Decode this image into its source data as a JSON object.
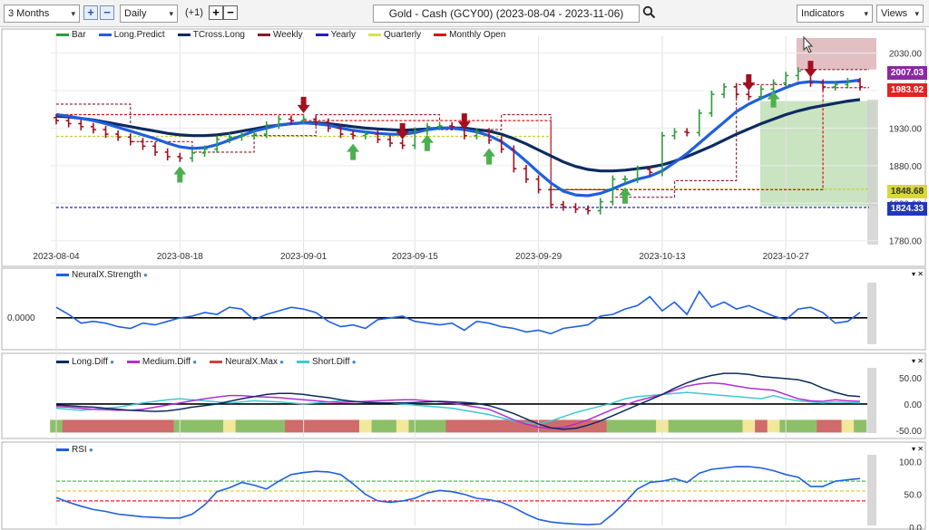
{
  "toolbar": {
    "period": "3 Months",
    "interval": "Daily",
    "offset": "(+1)",
    "title": "Gold - Cash (GCY00) (2023-08-04 - 2023-11-06)",
    "indicators_label": "Indicators",
    "views_label": "Views",
    "plus_glyph": "+",
    "minus_glyph": "−",
    "dropdown_glyph": "▾",
    "search_icon": "search-icon"
  },
  "legends": {
    "price": [
      {
        "label": "Bar",
        "color": "#2e9c3a"
      },
      {
        "label": "Long.Predict",
        "color": "#1f5fe0"
      },
      {
        "label": "TCross.Long",
        "color": "#0d2b5e"
      },
      {
        "label": "Weekly",
        "color": "#8b1a2b"
      },
      {
        "label": "Yearly",
        "color": "#2020c0"
      },
      {
        "label": "Quarterly",
        "color": "#d9e24a"
      },
      {
        "label": "Monthly Open",
        "color": "#e01010"
      }
    ],
    "neuralx": [
      {
        "label": "NeuralX.Strength",
        "color": "#1f5fe0"
      }
    ],
    "diff": [
      {
        "label": "Long.Diff",
        "color": "#0d2b5e"
      },
      {
        "label": "Medium.Diff",
        "color": "#b030d0"
      },
      {
        "label": "NeuralX.Max",
        "color": "#d04040"
      },
      {
        "label": "Short.Diff",
        "color": "#40c8d0"
      }
    ],
    "rsi": [
      {
        "label": "RSI",
        "color": "#1f5fe0"
      }
    ]
  },
  "price_axis": {
    "ticks": [
      "2030.00",
      "1980.00",
      "1930.00",
      "1880.00",
      "1830.00",
      "1780.00"
    ]
  },
  "price_tags": [
    {
      "value": "2007.03",
      "color": "#8a2aa0"
    },
    {
      "value": "1983.92",
      "color": "#e02424"
    },
    {
      "value": "1848.68",
      "color": "#d8d83a"
    },
    {
      "value": "1824.33",
      "color": "#2238b8"
    }
  ],
  "date_axis": {
    "ticks": [
      "2023-08-04",
      "2023-08-18",
      "2023-09-01",
      "2023-09-15",
      "2023-09-29",
      "2023-10-13",
      "2023-10-27"
    ]
  },
  "neuralx_axis": {
    "zero": "0.0000"
  },
  "diff_axis": {
    "ticks": [
      "50.00",
      "0.00",
      "-50.00"
    ]
  },
  "rsi_axis": {
    "ticks": [
      "100.0",
      "50.0",
      "0.0"
    ]
  },
  "close_glyph": "▾ ✕",
  "colors": {
    "bull": "#2e9c3a",
    "bear": "#a01020",
    "panel_border": "#b0b0b0"
  },
  "chart_data": [
    {
      "type": "line",
      "title": "",
      "x": [
        "2023-08-04",
        "2023-08-07",
        "2023-08-08",
        "2023-08-09",
        "2023-08-10",
        "2023-08-11",
        "2023-08-14",
        "2023-08-15",
        "2023-08-16",
        "2023-08-17",
        "2023-08-18",
        "2023-08-21",
        "2023-08-22",
        "2023-08-23",
        "2023-08-24",
        "2023-08-25",
        "2023-08-28",
        "2023-08-29",
        "2023-08-30",
        "2023-08-31",
        "2023-09-01",
        "2023-09-05",
        "2023-09-06",
        "2023-09-07",
        "2023-09-08",
        "2023-09-11",
        "2023-09-12",
        "2023-09-13",
        "2023-09-14",
        "2023-09-15",
        "2023-09-18",
        "2023-09-19",
        "2023-09-20",
        "2023-09-21",
        "2023-09-22",
        "2023-09-25",
        "2023-09-26",
        "2023-09-27",
        "2023-09-28",
        "2023-09-29",
        "2023-10-02",
        "2023-10-03",
        "2023-10-04",
        "2023-10-05",
        "2023-10-06",
        "2023-10-09",
        "2023-10-10",
        "2023-10-11",
        "2023-10-12",
        "2023-10-13",
        "2023-10-16",
        "2023-10-17",
        "2023-10-18",
        "2023-10-19",
        "2023-10-20",
        "2023-10-23",
        "2023-10-24",
        "2023-10-25",
        "2023-10-26",
        "2023-10-27",
        "2023-10-30",
        "2023-10-31",
        "2023-11-01",
        "2023-11-02",
        "2023-11-03",
        "2023-11-06"
      ],
      "series": [
        {
          "name": "Bar",
          "values": [
            1940,
            1936,
            1932,
            1928,
            1922,
            1918,
            1912,
            1906,
            1898,
            1892,
            1890,
            1897,
            1902,
            1915,
            1918,
            1920,
            1922,
            1934,
            1942,
            1940,
            1942,
            1938,
            1930,
            1922,
            1920,
            1922,
            1915,
            1910,
            1907,
            1926,
            1932,
            1933,
            1932,
            1920,
            1925,
            1914,
            1902,
            1876,
            1862,
            1848,
            1828,
            1825,
            1822,
            1820,
            1832,
            1862,
            1862,
            1875,
            1871,
            1920,
            1925,
            1924,
            1950,
            1975,
            1985,
            1975,
            1972,
            1982,
            1990,
            2000,
            2006,
            1990,
            1985,
            1988,
            1992,
            1985
          ]
        },
        {
          "name": "Long.Predict",
          "values": [
            1948,
            1946,
            1943,
            1940,
            1936,
            1931,
            1926,
            1921,
            1916,
            1910,
            1905,
            1903,
            1904,
            1908,
            1914,
            1920,
            1926,
            1930,
            1934,
            1936,
            1937,
            1936,
            1934,
            1930,
            1927,
            1925,
            1923,
            1922,
            1922,
            1924,
            1928,
            1930,
            1930,
            1928,
            1925,
            1920,
            1912,
            1900,
            1886,
            1871,
            1857,
            1846,
            1841,
            1840,
            1843,
            1849,
            1856,
            1862,
            1866,
            1873,
            1884,
            1896,
            1910,
            1924,
            1938,
            1952,
            1962,
            1970,
            1977,
            1984,
            1990,
            1992,
            1991,
            1991,
            1992,
            1994
          ]
        },
        {
          "name": "TCross.Long",
          "values": [
            1946,
            1945,
            1943,
            1941,
            1938,
            1935,
            1932,
            1929,
            1926,
            1923,
            1921,
            1920,
            1920,
            1921,
            1923,
            1926,
            1929,
            1932,
            1934,
            1936,
            1937,
            1937,
            1936,
            1934,
            1932,
            1930,
            1929,
            1928,
            1927,
            1928,
            1929,
            1930,
            1930,
            1930,
            1928,
            1926,
            1922,
            1916,
            1909,
            1901,
            1893,
            1885,
            1879,
            1875,
            1873,
            1873,
            1874,
            1876,
            1878,
            1881,
            1886,
            1892,
            1899,
            1906,
            1914,
            1922,
            1929,
            1936,
            1942,
            1948,
            1953,
            1957,
            1960,
            1963,
            1966,
            1968
          ]
        },
        {
          "name": "Weekly",
          "values": [
            1962,
            1962,
            1962,
            1962,
            1962,
            1962,
            1912,
            1912,
            1912,
            1912,
            1912,
            1898,
            1898,
            1898,
            1898,
            1898,
            1920,
            1920,
            1920,
            1920,
            1920,
            1948,
            1948,
            1948,
            1948,
            1948,
            1948,
            1948,
            1948,
            1948,
            1948,
            1928,
            1928,
            1928,
            1928,
            1928,
            1948,
            1948,
            1948,
            1948,
            1848,
            1848,
            1848,
            1848,
            1848,
            1838,
            1838,
            1838,
            1838,
            1838,
            1860,
            1860,
            1860,
            1860,
            1860,
            1988,
            1988,
            1988,
            1988,
            1988,
            2008,
            2008,
            2008,
            2008,
            2008,
            2008
          ]
        },
        {
          "name": "Yearly",
          "values": [
            1824.33,
            1824.33,
            1824.33,
            1824.33,
            1824.33,
            1824.33,
            1824.33,
            1824.33,
            1824.33,
            1824.33,
            1824.33,
            1824.33,
            1824.33,
            1824.33,
            1824.33,
            1824.33,
            1824.33,
            1824.33,
            1824.33,
            1824.33,
            1824.33,
            1824.33,
            1824.33,
            1824.33,
            1824.33,
            1824.33,
            1824.33,
            1824.33,
            1824.33,
            1824.33,
            1824.33,
            1824.33,
            1824.33,
            1824.33,
            1824.33,
            1824.33,
            1824.33,
            1824.33,
            1824.33,
            1824.33,
            1824.33,
            1824.33,
            1824.33,
            1824.33,
            1824.33,
            1824.33,
            1824.33,
            1824.33,
            1824.33,
            1824.33,
            1824.33,
            1824.33,
            1824.33,
            1824.33,
            1824.33,
            1824.33,
            1824.33,
            1824.33,
            1824.33,
            1824.33,
            1824.33,
            1824.33,
            1824.33,
            1824.33,
            1824.33,
            1824.33
          ]
        },
        {
          "name": "Quarterly",
          "values": [
            1919,
            1919,
            1919,
            1919,
            1919,
            1919,
            1919,
            1919,
            1919,
            1919,
            1919,
            1919,
            1919,
            1919,
            1919,
            1919,
            1919,
            1919,
            1919,
            1919,
            1919,
            1919,
            1919,
            1919,
            1919,
            1919,
            1919,
            1919,
            1919,
            1919,
            1919,
            1919,
            1919,
            1919,
            1919,
            1919,
            1919,
            1919,
            1919,
            1919,
            1848.68,
            1848.68,
            1848.68,
            1848.68,
            1848.68,
            1848.68,
            1848.68,
            1848.68,
            1848.68,
            1848.68,
            1848.68,
            1848.68,
            1848.68,
            1848.68,
            1848.68,
            1848.68,
            1848.68,
            1848.68,
            1848.68,
            1848.68,
            1848.68,
            1848.68,
            1848.68,
            1848.68,
            1848.68,
            1848.68
          ]
        },
        {
          "name": "Monthly Open",
          "values": [
            1948,
            1948,
            1948,
            1948,
            1948,
            1948,
            1948,
            1948,
            1948,
            1948,
            1948,
            1948,
            1948,
            1948,
            1948,
            1948,
            1948,
            1948,
            1948,
            1948,
            1940,
            1940,
            1940,
            1940,
            1940,
            1940,
            1940,
            1940,
            1940,
            1940,
            1940,
            1940,
            1940,
            1940,
            1940,
            1940,
            1940,
            1940,
            1940,
            1940,
            1848,
            1848,
            1848,
            1848,
            1848,
            1848,
            1848,
            1848,
            1848,
            1848,
            1848,
            1848,
            1848,
            1848,
            1848,
            1848,
            1848,
            1848,
            1848,
            1848,
            1848,
            1848,
            1983.92,
            1983.92,
            1983.92,
            1983.92
          ]
        }
      ],
      "signals": {
        "buy_index": [
          10,
          24,
          30,
          35,
          46,
          58
        ],
        "sell_index": [
          20,
          28,
          33,
          56,
          61
        ]
      },
      "ylim": [
        1770,
        2050
      ],
      "yticks": [
        1780,
        1830,
        1880,
        1930,
        1980,
        2030
      ]
    },
    {
      "type": "line",
      "series": [
        {
          "name": "NeuralX.Strength",
          "values": [
            0.6,
            0.2,
            -0.3,
            -0.2,
            -0.3,
            -0.5,
            -0.6,
            -0.3,
            -0.4,
            -0.2,
            0.0,
            0.1,
            0.3,
            0.2,
            0.6,
            0.5,
            -0.1,
            0.2,
            0.4,
            0.6,
            0.5,
            0.3,
            -0.2,
            -0.5,
            -0.4,
            -0.6,
            -0.1,
            0.0,
            0.1,
            -0.2,
            -0.3,
            -0.4,
            -0.3,
            -0.7,
            -0.2,
            -0.3,
            -0.5,
            -0.6,
            -0.8,
            -0.7,
            -0.9,
            -0.6,
            -0.5,
            -0.4,
            0.1,
            0.2,
            0.5,
            0.7,
            1.2,
            0.4,
            0.9,
            0.2,
            1.5,
            0.6,
            0.9,
            0.5,
            0.7,
            0.4,
            0.1,
            -0.1,
            0.5,
            0.6,
            0.3,
            -0.3,
            -0.2,
            0.3
          ]
        }
      ],
      "ylim": [
        -1.5,
        2.0
      ]
    },
    {
      "type": "line",
      "series": [
        {
          "name": "Long.Diff",
          "values": [
            -2,
            -3,
            -5,
            -6,
            -8,
            -10,
            -12,
            -13,
            -14,
            -13,
            -10,
            -6,
            -3,
            0,
            5,
            10,
            14,
            18,
            20,
            20,
            18,
            15,
            12,
            8,
            5,
            3,
            2,
            2,
            2,
            3,
            4,
            5,
            4,
            3,
            1,
            -3,
            -10,
            -18,
            -28,
            -38,
            -45,
            -48,
            -46,
            -40,
            -32,
            -22,
            -12,
            -2,
            8,
            18,
            30,
            40,
            48,
            54,
            58,
            58,
            56,
            52,
            50,
            48,
            46,
            40,
            30,
            22,
            16,
            14
          ]
        },
        {
          "name": "Medium.Diff",
          "values": [
            -5,
            -6,
            -8,
            -10,
            -11,
            -12,
            -12,
            -10,
            -6,
            -2,
            2,
            6,
            10,
            13,
            16,
            16,
            14,
            13,
            12,
            10,
            8,
            6,
            4,
            3,
            4,
            5,
            6,
            7,
            8,
            8,
            6,
            4,
            2,
            -2,
            -6,
            -10,
            -20,
            -30,
            -38,
            -44,
            -46,
            -44,
            -38,
            -30,
            -20,
            -10,
            -2,
            6,
            12,
            18,
            26,
            34,
            38,
            40,
            38,
            34,
            30,
            28,
            26,
            18,
            10,
            6,
            5,
            8,
            6,
            5
          ]
        },
        {
          "name": "Short.Diff",
          "values": [
            -8,
            -10,
            -12,
            -10,
            -8,
            -6,
            -2,
            2,
            5,
            8,
            10,
            8,
            6,
            4,
            2,
            4,
            6,
            5,
            4,
            2,
            0,
            2,
            4,
            6,
            5,
            4,
            3,
            2,
            0,
            -2,
            -4,
            -6,
            -8,
            -12,
            -16,
            -20,
            -26,
            -32,
            -36,
            -38,
            -32,
            -24,
            -16,
            -10,
            -4,
            2,
            10,
            14,
            16,
            18,
            20,
            22,
            20,
            18,
            16,
            14,
            12,
            10,
            16,
            10,
            6,
            4,
            2,
            4,
            3,
            2
          ]
        }
      ],
      "ylim": [
        -55,
        65
      ]
    },
    {
      "type": "line",
      "series": [
        {
          "name": "RSI",
          "values": [
            45,
            38,
            32,
            27,
            24,
            20,
            18,
            16,
            15,
            14,
            14,
            20,
            34,
            54,
            60,
            68,
            64,
            58,
            70,
            80,
            83,
            85,
            84,
            80,
            66,
            50,
            40,
            38,
            40,
            44,
            52,
            56,
            54,
            50,
            44,
            42,
            38,
            30,
            20,
            12,
            8,
            6,
            5,
            4,
            5,
            20,
            38,
            58,
            68,
            70,
            74,
            68,
            82,
            88,
            90,
            92,
            92,
            90,
            86,
            80,
            76,
            62,
            62,
            70,
            72,
            74
          ]
        }
      ],
      "ylim": [
        0,
        110
      ],
      "reference_lines": [
        70,
        55,
        40
      ]
    }
  ]
}
